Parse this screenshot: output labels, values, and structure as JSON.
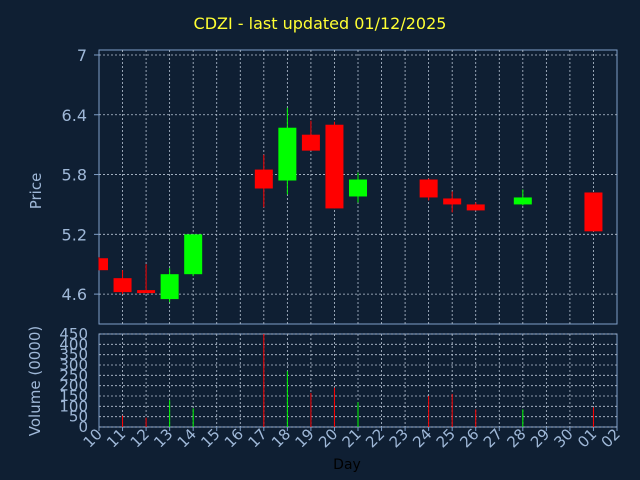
{
  "chart_data": [
    {
      "type": "candlestick",
      "title": "CDZI - last updated 01/12/2025",
      "ylabel": "Price",
      "ylim": [
        4.3,
        7.05
      ],
      "yticks": [
        4.6,
        5.2,
        5.8,
        6.4,
        7
      ],
      "colors": {
        "up": "#00ff00",
        "down": "#ff0000",
        "grid": "#b8c4d4",
        "axis": "#7f9fc8",
        "plot_bg": "#0f1f33"
      },
      "candles": [
        {
          "day": "10",
          "open": 4.96,
          "high": 4.97,
          "low": 4.84,
          "close": 4.84
        },
        {
          "day": "11",
          "open": 4.76,
          "high": 4.84,
          "low": 4.6,
          "close": 4.62
        },
        {
          "day": "12",
          "open": 4.64,
          "high": 4.9,
          "low": 4.61,
          "close": 4.61
        },
        {
          "day": "13",
          "open": 4.55,
          "high": 4.86,
          "low": 4.52,
          "close": 4.8
        },
        {
          "day": "14",
          "open": 4.8,
          "high": 5.2,
          "low": 4.78,
          "close": 5.2
        },
        {
          "day": "17",
          "open": 5.85,
          "high": 6.0,
          "low": 5.47,
          "close": 5.66
        },
        {
          "day": "18",
          "open": 5.74,
          "high": 6.47,
          "low": 5.6,
          "close": 6.27
        },
        {
          "day": "19",
          "open": 6.2,
          "high": 6.34,
          "low": 6.04,
          "close": 6.04
        },
        {
          "day": "20",
          "open": 6.3,
          "high": 6.33,
          "low": 5.46,
          "close": 5.46
        },
        {
          "day": "21",
          "open": 5.58,
          "high": 5.82,
          "low": 5.52,
          "close": 5.75
        },
        {
          "day": "24",
          "open": 5.75,
          "high": 5.76,
          "low": 5.54,
          "close": 5.57
        },
        {
          "day": "25",
          "open": 5.56,
          "high": 5.63,
          "low": 5.42,
          "close": 5.5
        },
        {
          "day": "26",
          "open": 5.5,
          "high": 5.52,
          "low": 5.44,
          "close": 5.44
        },
        {
          "day": "28",
          "open": 5.5,
          "high": 5.65,
          "low": 5.49,
          "close": 5.57
        },
        {
          "day": "01",
          "open": 5.62,
          "high": 5.62,
          "low": 5.23,
          "close": 5.23
        }
      ]
    },
    {
      "type": "bar",
      "ylabel": "Volume (0000)",
      "xlabel": "Day",
      "ylim": [
        0,
        450
      ],
      "yticks": [
        0,
        50,
        100,
        150,
        200,
        250,
        300,
        350,
        400,
        450
      ],
      "categories": [
        "10",
        "11",
        "12",
        "13",
        "14",
        "15",
        "16",
        "17",
        "18",
        "19",
        "20",
        "21",
        "22",
        "23",
        "24",
        "25",
        "26",
        "27",
        "28",
        "29",
        "30",
        "01",
        "02"
      ],
      "values": [
        {
          "day": "11",
          "value": 55,
          "color": "#ff0000"
        },
        {
          "day": "12",
          "value": 45,
          "color": "#ff0000"
        },
        {
          "day": "13",
          "value": 130,
          "color": "#00ff00"
        },
        {
          "day": "14",
          "value": 90,
          "color": "#00ff00"
        },
        {
          "day": "17",
          "value": 450,
          "color": "#ff0000"
        },
        {
          "day": "18",
          "value": 270,
          "color": "#00ff00"
        },
        {
          "day": "19",
          "value": 165,
          "color": "#ff0000"
        },
        {
          "day": "20",
          "value": 190,
          "color": "#ff0000"
        },
        {
          "day": "21",
          "value": 120,
          "color": "#00ff00"
        },
        {
          "day": "24",
          "value": 150,
          "color": "#ff0000"
        },
        {
          "day": "25",
          "value": 160,
          "color": "#ff0000"
        },
        {
          "day": "26",
          "value": 85,
          "color": "#ff0000"
        },
        {
          "day": "28",
          "value": 85,
          "color": "#00ff00"
        },
        {
          "day": "01",
          "value": 95,
          "color": "#ff0000"
        }
      ]
    }
  ]
}
